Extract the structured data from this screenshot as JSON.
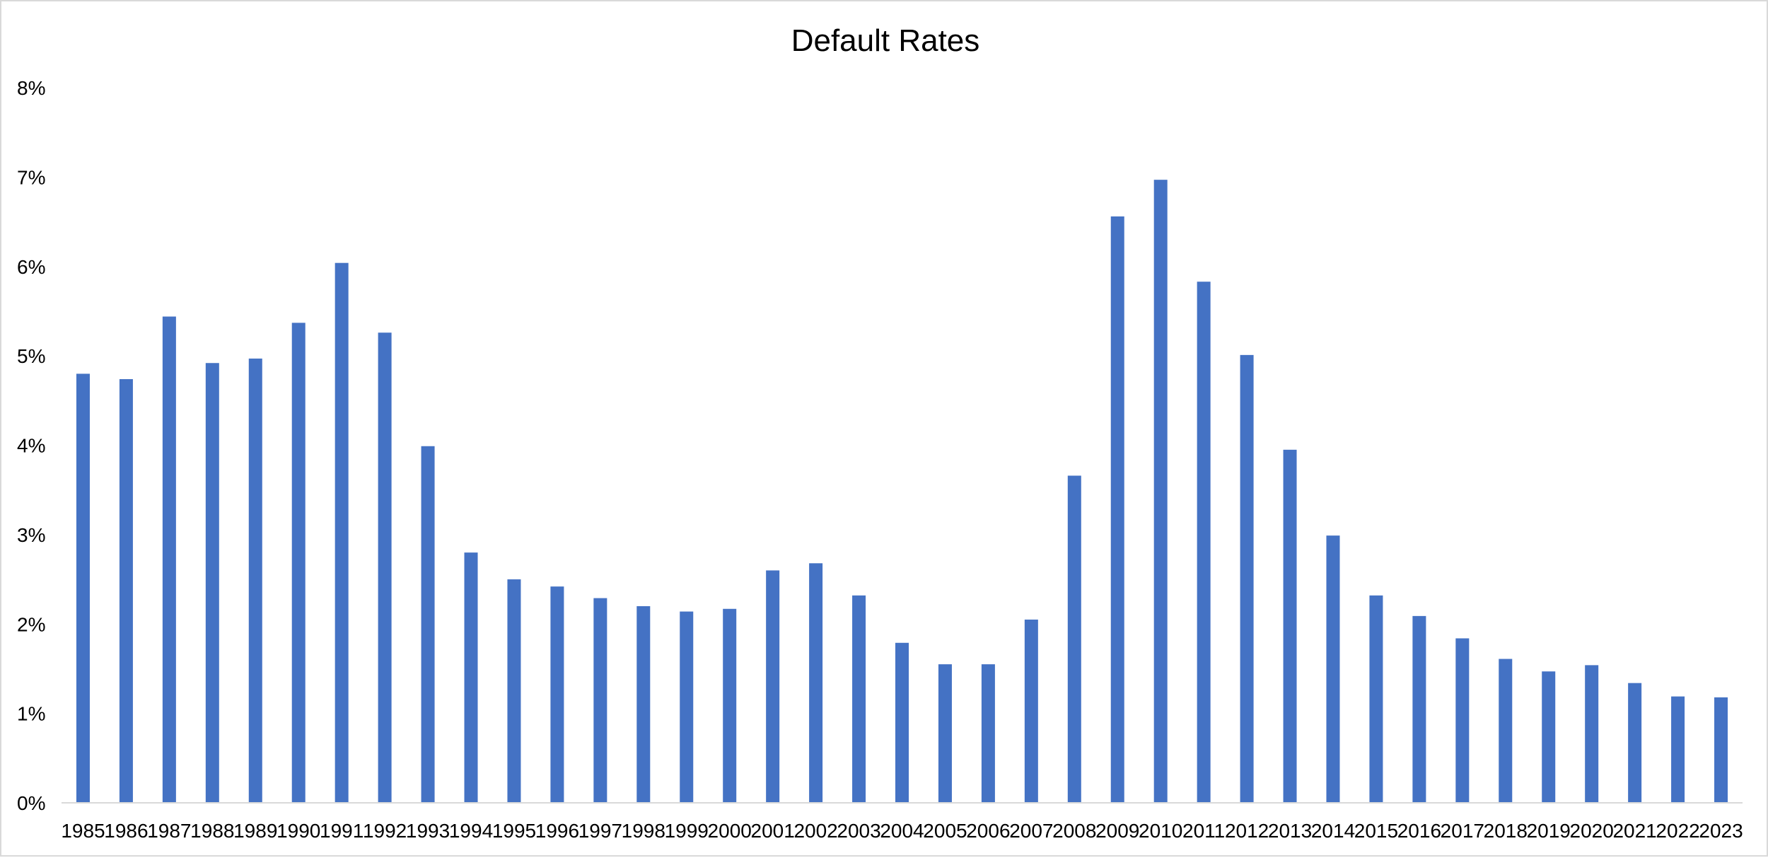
{
  "chart_data": {
    "type": "bar",
    "title": "Default Rates",
    "xlabel": "",
    "ylabel": "",
    "categories": [
      "1985",
      "1986",
      "1987",
      "1988",
      "1989",
      "1990",
      "1991",
      "1992",
      "1993",
      "1994",
      "1995",
      "1996",
      "1997",
      "1998",
      "1999",
      "2000",
      "2001",
      "2002",
      "2003",
      "2004",
      "2005",
      "2006",
      "2007",
      "2008",
      "2009",
      "2010",
      "2011",
      "2012",
      "2013",
      "2014",
      "2015",
      "2016",
      "2017",
      "2018",
      "2019",
      "2020",
      "2021",
      "2022",
      "2023"
    ],
    "values": [
      4.8,
      4.74,
      5.44,
      4.92,
      4.97,
      5.37,
      6.04,
      5.26,
      3.99,
      2.8,
      2.5,
      2.42,
      2.29,
      2.2,
      2.14,
      2.17,
      2.6,
      2.68,
      2.32,
      1.79,
      1.55,
      1.55,
      2.05,
      3.66,
      6.56,
      6.97,
      5.83,
      5.01,
      3.95,
      2.99,
      2.32,
      2.09,
      1.84,
      1.61,
      1.47,
      1.54,
      1.34,
      1.19,
      1.18
    ],
    "ylim": [
      0,
      8
    ],
    "yticks": [
      "0%",
      "1%",
      "2%",
      "3%",
      "4%",
      "5%",
      "6%",
      "7%",
      "8%"
    ],
    "grid": false,
    "legend": "none",
    "bar_color": "#4472C4"
  }
}
